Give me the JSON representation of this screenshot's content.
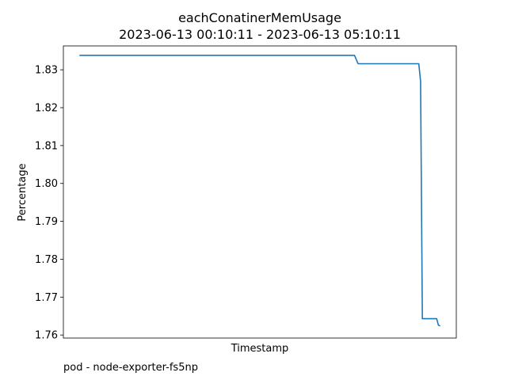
{
  "chart_data": {
    "type": "line",
    "title": "eachConatinerMemUsage",
    "subtitle": "2023-06-13 00:10:11 - 2023-06-13 05:10:11",
    "xlabel": "Timestamp",
    "ylabel": "Percentage",
    "x_ticks_visible": false,
    "ylim": [
      1.7592,
      1.8363
    ],
    "yticks": [
      1.76,
      1.77,
      1.78,
      1.79,
      1.8,
      1.81,
      1.82,
      1.83
    ],
    "ytick_labels": [
      "1.76",
      "1.77",
      "1.78",
      "1.79",
      "1.80",
      "1.81",
      "1.82",
      "1.83"
    ],
    "grid": false,
    "line_color": "#1f77b4",
    "series": [
      {
        "x": [
          0,
          0.77,
          0.78,
          0.95,
          0.955,
          0.96,
          1.0,
          1.005,
          1.01
        ],
        "values": [
          1.8338,
          1.8338,
          1.8316,
          1.8316,
          1.827,
          1.7643,
          1.7643,
          1.7626,
          1.7624
        ]
      }
    ]
  },
  "caption": "pod - node-exporter-fs5np"
}
